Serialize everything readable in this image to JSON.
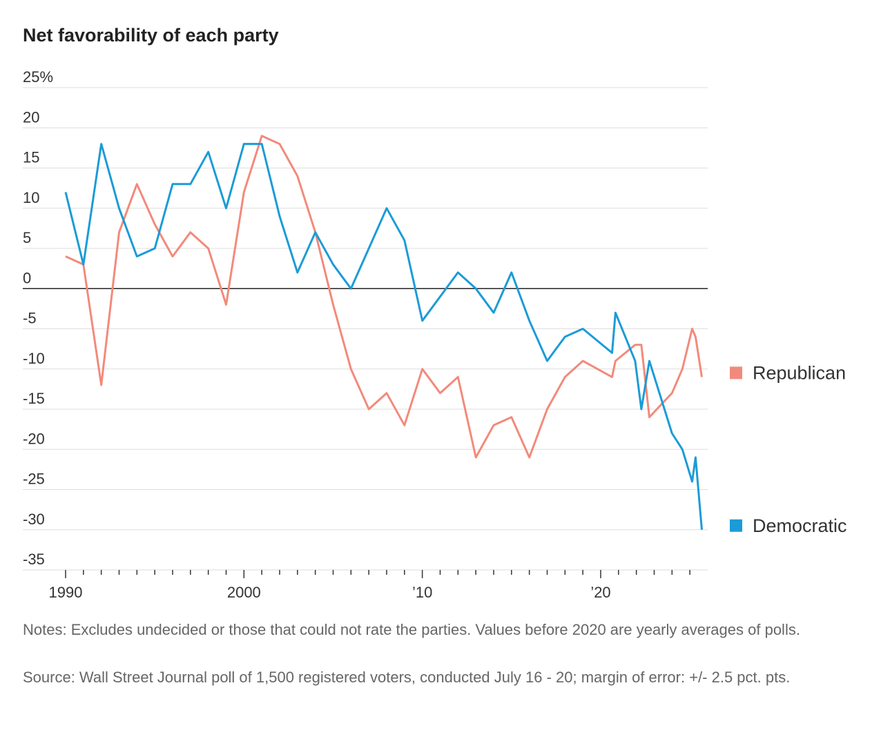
{
  "chart_data": {
    "type": "line",
    "title": "Net favorability of each party",
    "x": [
      1990,
      1991,
      1992,
      1993,
      1994,
      1995,
      1996,
      1997,
      1998,
      1999,
      2000,
      2001,
      2002,
      2003,
      2004,
      2005,
      2006,
      2007,
      2008,
      2009,
      2010,
      2011,
      2012,
      2013,
      2014,
      2015,
      2016,
      2017,
      2018,
      2019,
      2020.64,
      2020.83,
      2021.93,
      2022.28,
      2022.73,
      2024.0,
      2024.58,
      2025.13,
      2025.32,
      2025.67
    ],
    "series": [
      {
        "name": "Republican",
        "color": "#f28a7b",
        "values": [
          4,
          3,
          -12,
          7,
          13,
          8,
          4,
          7,
          5,
          -2,
          12,
          19,
          18,
          14,
          7,
          -2,
          -10,
          -15,
          -13,
          -17,
          -10,
          -13,
          -11,
          -21,
          -17,
          -16,
          -21,
          -15,
          -11,
          -9,
          -11,
          -9,
          -7,
          -7,
          -16,
          -13,
          -10,
          -5,
          -6,
          -11
        ]
      },
      {
        "name": "Democratic",
        "color": "#1b9bd7",
        "values": [
          12,
          3,
          18,
          10,
          4,
          5,
          13,
          13,
          17,
          10,
          18,
          18,
          9,
          2,
          7,
          3,
          0,
          5,
          10,
          6,
          -4,
          -1,
          2,
          0,
          -3,
          2,
          -4,
          -9,
          -6,
          -5,
          -8,
          -3,
          -9,
          -15,
          -9,
          -18,
          -20,
          -24,
          -21,
          -30
        ]
      }
    ],
    "xlim": [
      1987.6,
      2026
    ],
    "xticks": [
      1990,
      2000,
      {
        "value": 2010,
        "label": "’10"
      },
      {
        "value": 2020,
        "label": "’20"
      }
    ],
    "xminorticks": [
      1991,
      1992,
      1993,
      1994,
      1995,
      1996,
      1997,
      1998,
      1999,
      2001,
      2002,
      2003,
      2004,
      2005,
      2006,
      2007,
      2008,
      2009,
      2011,
      2012,
      2013,
      2014,
      2015,
      2016,
      2017,
      2018,
      2019,
      2021,
      2022,
      2023,
      2024,
      2025
    ],
    "ylim": [
      -35,
      25
    ],
    "yticks": [
      {
        "value": 25,
        "label": "25%"
      },
      20,
      15,
      10,
      5,
      0,
      -5,
      -10,
      -15,
      -20,
      -25,
      -30,
      -35
    ],
    "grid": true,
    "notes": "Notes: Excludes undecided or those that could not rate the parties. Values before 2020 are yearly averages of polls.",
    "source": "Source: Wall Street Journal poll of 1,500 registered voters, conducted July 16 - 20; margin of error: +/- 2.5 pct. pts."
  }
}
